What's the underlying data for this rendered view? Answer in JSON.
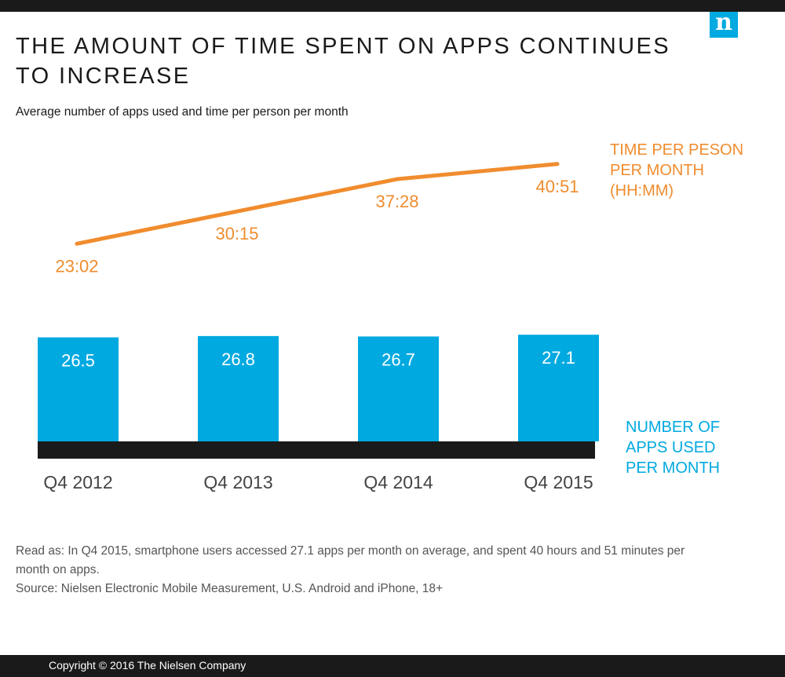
{
  "header": {
    "title": "THE AMOUNT OF TIME SPENT ON APPS CONTINUES TO INCREASE",
    "subtitle": "Average number of apps used and time per person per month",
    "logo_letter": "n"
  },
  "chart_data": {
    "type": "bar",
    "title": "THE AMOUNT OF TIME SPENT ON APPS CONTINUES TO INCREASE",
    "subtitle": "Average number of apps used and time per person per month",
    "categories": [
      "Q4 2012",
      "Q4 2013",
      "Q4 2014",
      "Q4 2015"
    ],
    "series": [
      {
        "name": "NUMBER OF APPS USED PER MONTH",
        "type": "bar",
        "values": [
          26.5,
          26.8,
          26.7,
          27.1
        ],
        "labels": [
          "26.5",
          "26.8",
          "26.7",
          "27.1"
        ],
        "color": "#00a9e0"
      },
      {
        "name": "TIME PER PESON PER MONTH (HH:MM)",
        "type": "line",
        "values": [
          23.03,
          30.25,
          37.47,
          40.85
        ],
        "labels": [
          "23:02",
          "30:15",
          "37:28",
          "40:51"
        ],
        "color": "#f08c2e"
      }
    ],
    "legend": {
      "time_lines": [
        "TIME PER PESON",
        "PER MONTH",
        "(HH:MM)"
      ],
      "apps_lines": [
        "NUMBER OF",
        "APPS USED",
        "PER MONTH"
      ]
    }
  },
  "notes": {
    "read_as": "Read as: In Q4 2015, smartphone users accessed 27.1 apps per month on average, and spent 40 hours and 51 minutes per month on apps.",
    "source": "Source: Nielsen Electronic Mobile Measurement, U.S. Android and iPhone, 18+"
  },
  "footer": {
    "copyright": "Copyright © 2016 The Nielsen Company"
  },
  "colors": {
    "bar": "#00a9e0",
    "line": "#f08c2e",
    "dark": "#1a1a1a",
    "white": "#ffffff"
  }
}
